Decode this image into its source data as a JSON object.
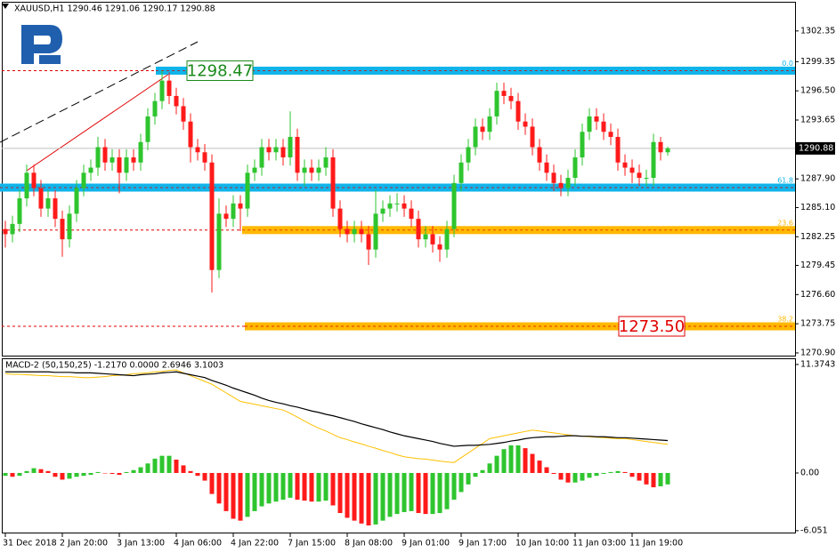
{
  "chart_data": [
    {
      "type": "candlestick",
      "title": "XAUUSD,H1  1290.46 1291.06 1290.17 1290.88",
      "categories": [
        "31 Dec 2018",
        null,
        null,
        null,
        null,
        null,
        null,
        null,
        "2 Jan 20:00",
        null,
        null,
        null,
        null,
        null,
        null,
        null,
        "3 Jan 13:00",
        null,
        null,
        null,
        null,
        null,
        null,
        null,
        "4 Jan 06:00",
        null,
        null,
        null,
        null,
        null,
        null,
        null,
        "4 Jan 22:00",
        null,
        null,
        null,
        null,
        null,
        null,
        null,
        "7 Jan 15:00",
        null,
        null,
        null,
        null,
        null,
        null,
        null,
        "8 Jan 08:00",
        null,
        null,
        null,
        null,
        null,
        null,
        null,
        "9 Jan 01:00",
        null,
        null,
        null,
        null,
        null,
        null,
        null,
        "9 Jan 17:00",
        null,
        null,
        null,
        null,
        null,
        null,
        null,
        "10 Jan 10:00",
        null,
        null,
        null,
        null,
        null,
        null,
        null,
        "11 Jan 03:00",
        null,
        null,
        null,
        null,
        null,
        null,
        null,
        "11 Jan 19:00",
        null,
        null,
        null,
        null,
        null
      ],
      "open": [
        1283,
        1282.5,
        1283.5,
        1286,
        1288.5,
        1287,
        1285,
        1286,
        1284,
        1282,
        1284.5,
        1287,
        1288.5,
        1289,
        1291,
        1289.5,
        1290,
        1288.5,
        1290,
        1289.5,
        1291.5,
        1294,
        1295.5,
        1297.5,
        1296,
        1295,
        1293.5,
        1291,
        1290.5,
        1289.5,
        1279,
        1284.5,
        1284,
        1285.5,
        1285,
        1288.5,
        1289,
        1291,
        1290.5,
        1291,
        1290,
        1292,
        1288.5,
        1289,
        1288.5,
        1289,
        1290,
        1285,
        1283,
        1282.5,
        1283,
        1282.5,
        1281,
        1284.5,
        1285,
        1285.5,
        1285.5,
        1285,
        1284,
        1282,
        1282.5,
        1281.5,
        1281,
        1283,
        1287.5,
        1289.5,
        1291,
        1293,
        1292.5,
        1294,
        1296.5,
        1296,
        1295.5,
        1293.5,
        1293,
        1291,
        1289.5,
        1288.5,
        1287.5,
        1287,
        1288,
        1290,
        1292.5,
        1294,
        1293.5,
        1292.5,
        1292,
        1289.5,
        1289,
        1288.5,
        1288,
        1288,
        1291.5,
        1290.5
      ],
      "high": [
        1283.8,
        1284.3,
        1286.8,
        1289.3,
        1289.3,
        1287.8,
        1286.8,
        1286.8,
        1284.8,
        1285.3,
        1287.8,
        1289.3,
        1289.8,
        1292,
        1291.8,
        1290.8,
        1290.8,
        1290.8,
        1290.8,
        1292.3,
        1294.8,
        1296.3,
        1298.47,
        1298.3,
        1296.8,
        1295.8,
        1294.3,
        1291.8,
        1291.3,
        1290.3,
        1286,
        1285.3,
        1286.3,
        1286.3,
        1289.3,
        1289.8,
        1291.8,
        1291.8,
        1291.8,
        1291.8,
        1294.5,
        1292.8,
        1289.8,
        1289.8,
        1289.8,
        1291,
        1290.8,
        1285.8,
        1283.8,
        1283.8,
        1283.8,
        1283.3,
        1286.8,
        1285.8,
        1286.3,
        1286.5,
        1286.3,
        1285.8,
        1284.8,
        1283.3,
        1283.3,
        1282.3,
        1283.8,
        1288.3,
        1290.3,
        1291.8,
        1293.8,
        1293.8,
        1294.8,
        1297.3,
        1297.3,
        1296.8,
        1296.3,
        1294.3,
        1293.8,
        1291.8,
        1290.3,
        1289.3,
        1288.3,
        1288.8,
        1290.8,
        1293.3,
        1294.8,
        1294.8,
        1294.3,
        1293.3,
        1292.8,
        1290.3,
        1289.8,
        1289.3,
        1288.8,
        1292.3,
        1292,
        1291.06
      ],
      "low": [
        1281.2,
        1281.7,
        1282.7,
        1285.2,
        1286.2,
        1284.2,
        1284.2,
        1283.2,
        1280.3,
        1281.2,
        1283.7,
        1286.2,
        1287.7,
        1288.2,
        1288.7,
        1288.7,
        1286.5,
        1287.7,
        1288.7,
        1288.7,
        1290.7,
        1293.2,
        1294.7,
        1295.2,
        1294.2,
        1292.7,
        1289.5,
        1289.7,
        1288.7,
        1276.8,
        1278.2,
        1283.2,
        1283.2,
        1282.8,
        1284.2,
        1287.7,
        1288.2,
        1289.7,
        1289.7,
        1289.2,
        1289.2,
        1287.7,
        1287.2,
        1287.7,
        1287.7,
        1288.2,
        1284.2,
        1282.2,
        1281.7,
        1281.7,
        1281.7,
        1279.5,
        1280.2,
        1283.7,
        1284.2,
        1284.7,
        1284.2,
        1283.2,
        1281.2,
        1281.2,
        1280.7,
        1279.8,
        1280.2,
        1282.2,
        1286.7,
        1288.7,
        1290.2,
        1291.7,
        1291.7,
        1293.2,
        1295.2,
        1294.7,
        1292.7,
        1292.2,
        1290.2,
        1288.7,
        1287.7,
        1286.7,
        1286.2,
        1286.2,
        1287.2,
        1289.2,
        1291.7,
        1292.7,
        1291.7,
        1291.2,
        1288.7,
        1288.2,
        1287.5,
        1287.2,
        1287.2,
        1287.2,
        1289.7,
        1290.17
      ],
      "close": [
        1282.5,
        1283.5,
        1286,
        1288.5,
        1287,
        1285,
        1286,
        1284,
        1282,
        1284.5,
        1287,
        1288.5,
        1289,
        1291,
        1289.5,
        1290,
        1288.5,
        1290,
        1289.5,
        1291.5,
        1294,
        1295.5,
        1297.5,
        1296,
        1295,
        1293.5,
        1291,
        1290.5,
        1289.5,
        1279,
        1284.5,
        1284,
        1285.5,
        1285,
        1288.5,
        1289,
        1291,
        1290.5,
        1291,
        1290,
        1292,
        1288.5,
        1289,
        1288.5,
        1289,
        1290,
        1285,
        1283,
        1282.5,
        1283,
        1282.5,
        1281,
        1284.5,
        1285,
        1285.5,
        1285.5,
        1285,
        1284,
        1282,
        1282.5,
        1281.5,
        1281,
        1283,
        1287.5,
        1289.5,
        1291,
        1293,
        1292.5,
        1294,
        1296.5,
        1296,
        1295.5,
        1293.5,
        1293,
        1291,
        1289.5,
        1288.5,
        1287.5,
        1287,
        1288,
        1290,
        1292.5,
        1294,
        1293.5,
        1292.5,
        1292,
        1289.5,
        1289,
        1288.5,
        1288,
        1288,
        1291.5,
        1290.5,
        1290.88
      ],
      "up_color": "#2ec52e",
      "down_color": "#ff1a1a",
      "last": 1290.88,
      "ylim": [
        1270.55,
        1305.2
      ],
      "yticks": [
        1302.35,
        1299.35,
        {
          "value": 1296.5,
          "label": "1296.50"
        },
        1293.65,
        {
          "value": 1287.9,
          "label": "1287.90"
        },
        {
          "value": 1285.1,
          "label": "1285.10"
        },
        1282.25,
        1279.45,
        {
          "value": 1276.6,
          "label": "1276.60"
        },
        1273.75,
        {
          "value": 1270.9,
          "label": "1270.90"
        }
      ],
      "levels": [
        {
          "label": "0.0",
          "value": 1298.47,
          "color": "#10b4ea",
          "tag": "1298.47",
          "tag_color": "#1b8a1b"
        },
        {
          "label": "61.8",
          "value": 1287.05,
          "color": "#10b4ea"
        },
        {
          "label": "23.6",
          "value": 1282.9,
          "color": "#ffb800"
        },
        {
          "label": "38.2",
          "value": 1273.5,
          "color": "#ffb800",
          "tag": "1273.50",
          "tag_color": "#e00000"
        }
      ]
    },
    {
      "type": "macd",
      "title": "MACD-2 (50,150,25) -1.2170 0.0000 2.6946 3.1003",
      "histogram": [
        -0.3,
        -0.4,
        -0.3,
        0.2,
        0.5,
        0.4,
        0.2,
        -0.4,
        -0.7,
        -0.6,
        -0.4,
        -0.3,
        -0.2,
        0.1,
        0.0,
        -0.1,
        -0.2,
        0.1,
        0.3,
        0.6,
        1.0,
        1.5,
        1.8,
        1.8,
        1.4,
        0.8,
        0.2,
        -0.3,
        -0.8,
        -2.2,
        -3.2,
        -4.0,
        -4.8,
        -5.0,
        -4.6,
        -4.0,
        -3.5,
        -3.2,
        -3.0,
        -2.8,
        -2.6,
        -2.8,
        -2.9,
        -3.0,
        -3.0,
        -2.9,
        -3.4,
        -4.2,
        -4.7,
        -5.0,
        -5.3,
        -5.5,
        -5.4,
        -5.0,
        -4.6,
        -4.3,
        -4.1,
        -4.0,
        -4.2,
        -4.3,
        -4.3,
        -4.2,
        -3.8,
        -2.8,
        -2.0,
        -1.2,
        -0.4,
        0.3,
        1.0,
        1.8,
        2.5,
        2.9,
        2.9,
        2.6,
        2.0,
        1.3,
        0.6,
        -0.1,
        -0.7,
        -1.0,
        -1.0,
        -0.8,
        -0.5,
        -0.3,
        -0.1,
        0.1,
        0.2,
        0.1,
        -0.4,
        -0.8,
        -1.2,
        -1.5,
        -1.4,
        -1.2
      ],
      "macd": [
        10.6,
        10.6,
        10.6,
        10.6,
        10.6,
        10.6,
        10.6,
        10.55,
        10.55,
        10.55,
        10.5,
        10.5,
        10.5,
        10.45,
        10.4,
        10.35,
        10.3,
        10.25,
        10.2,
        10.3,
        10.35,
        10.4,
        10.5,
        10.55,
        10.6,
        10.45,
        10.3,
        10.15,
        10.0,
        9.7,
        9.45,
        9.2,
        8.9,
        8.65,
        8.4,
        8.15,
        7.85,
        7.6,
        7.4,
        7.25,
        7.05,
        6.9,
        6.7,
        6.5,
        6.35,
        6.15,
        6.0,
        5.8,
        5.6,
        5.4,
        5.15,
        4.95,
        4.75,
        4.55,
        4.3,
        4.1,
        3.9,
        3.75,
        3.6,
        3.45,
        3.3,
        3.1,
        2.95,
        2.8,
        2.85,
        2.9,
        2.9,
        2.95,
        3.0,
        3.1,
        3.2,
        3.35,
        3.45,
        3.6,
        3.7,
        3.75,
        3.8,
        3.8,
        3.85,
        3.9,
        3.9,
        3.85,
        3.85,
        3.8,
        3.8,
        3.75,
        3.7,
        3.7,
        3.65,
        3.6,
        3.55,
        3.5,
        3.45,
        3.4
      ],
      "signal": [
        10.4,
        10.35,
        10.35,
        10.3,
        10.25,
        10.2,
        10.2,
        10.15,
        10.1,
        10.1,
        10.05,
        10.0,
        10.0,
        10.05,
        10.1,
        10.2,
        10.25,
        10.3,
        10.4,
        10.45,
        10.5,
        10.6,
        10.65,
        10.75,
        10.8,
        10.5,
        10.2,
        9.9,
        9.6,
        9.3,
        8.85,
        8.4,
        7.95,
        7.5,
        7.35,
        7.2,
        7.05,
        6.9,
        6.75,
        6.6,
        6.25,
        5.85,
        5.45,
        5.05,
        4.7,
        4.4,
        4.05,
        3.7,
        3.5,
        3.25,
        3.05,
        2.8,
        2.6,
        2.35,
        2.15,
        1.9,
        1.7,
        1.6,
        1.5,
        1.45,
        1.35,
        1.25,
        1.15,
        1.1,
        1.6,
        2.1,
        2.6,
        3.1,
        3.6,
        3.75,
        3.9,
        4.05,
        4.2,
        4.35,
        4.5,
        4.4,
        4.3,
        4.2,
        4.1,
        4.0,
        3.9,
        3.85,
        3.8,
        3.75,
        3.7,
        3.65,
        3.6,
        3.6,
        3.5,
        3.4,
        3.3,
        3.2,
        3.1,
        3.0
      ],
      "up_color": "#2ec52e",
      "down_color": "#ff1a1a",
      "macd_color": "#000000",
      "signal_color": "#ffc000",
      "ylim": [
        -6.34,
        11.93
      ],
      "yticks": [
        11.3743,
        {
          "value": 0,
          "label": "0.00"
        },
        -6.051
      ]
    }
  ]
}
